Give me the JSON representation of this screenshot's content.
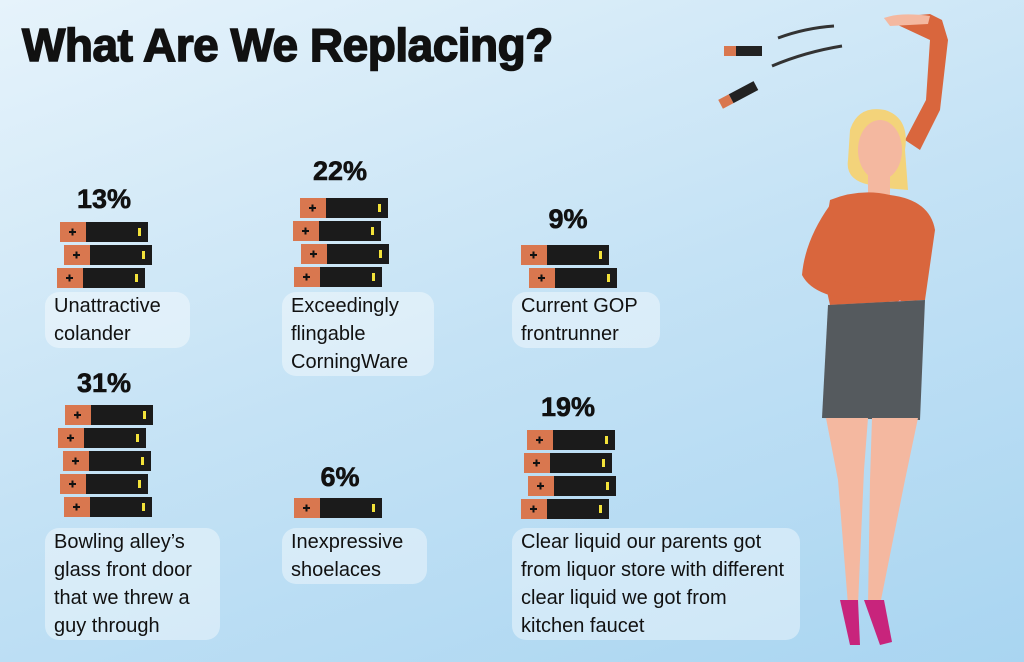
{
  "chart_data": {
    "type": "pictograph",
    "title": "What Are We Replacing?",
    "categories": [
      "Unattractive colander",
      "Exceedingly flingable CorningWare",
      "Current GOP frontrunner",
      "Bowling alley’s glass front door that we threw a guy through",
      "Inexpressive shoelaces",
      "Clear liquid our parents got from liquor store with different clear liquid we got from kitchen faucet"
    ],
    "values": [
      13,
      22,
      9,
      31,
      6,
      19
    ],
    "value_labels": [
      "13%",
      "22%",
      "9%",
      "31%",
      "6%",
      "19%"
    ],
    "color": "#d9774f"
  }
}
